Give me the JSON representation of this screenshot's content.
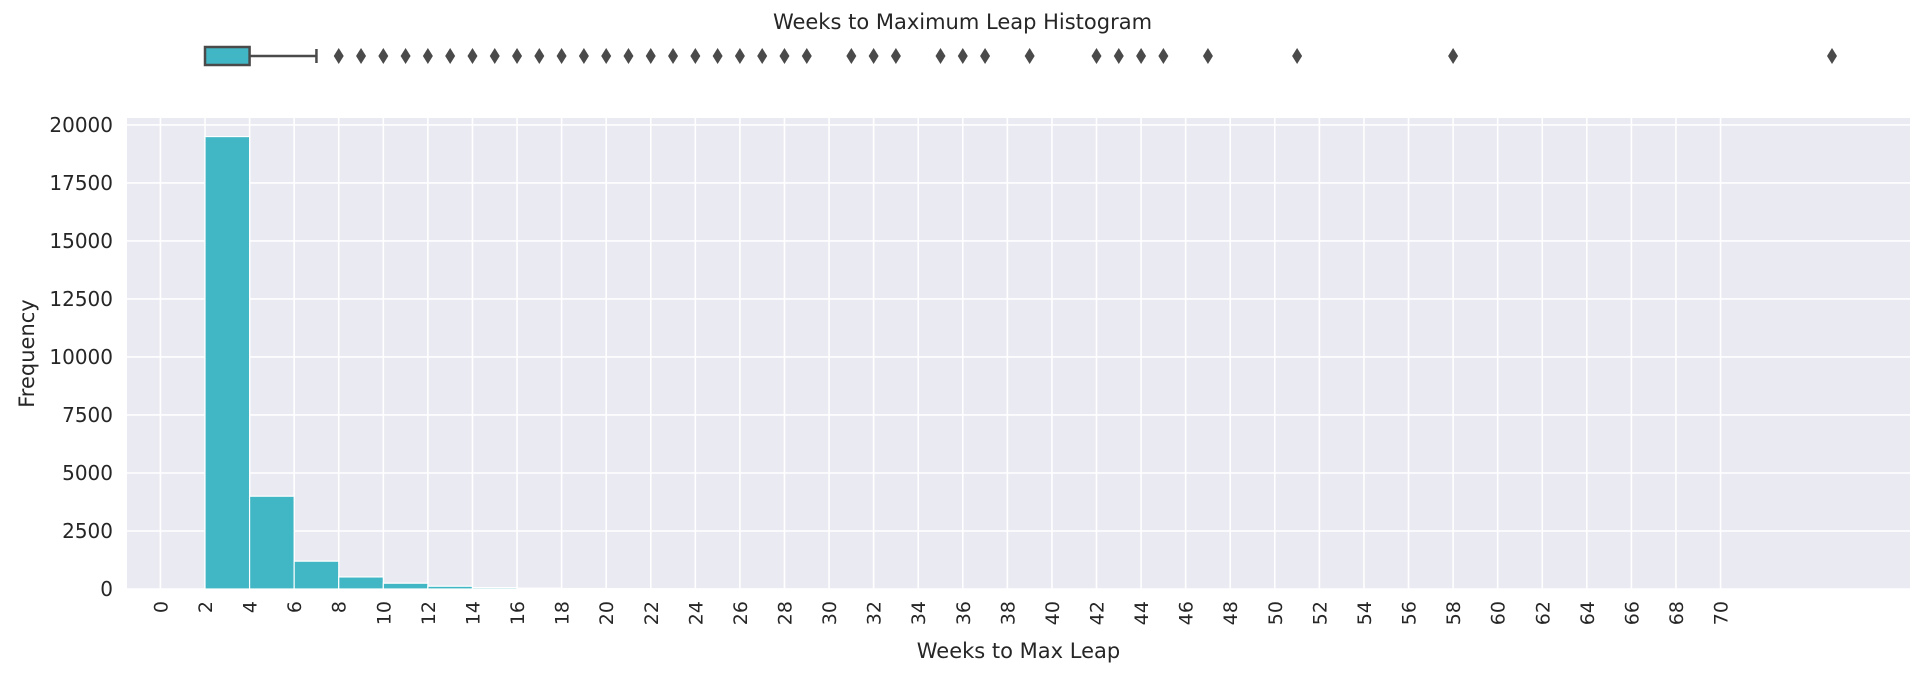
{
  "chart_data": {
    "type": "bar",
    "title": "Weeks to Maximum Leap Histogram",
    "xlabel": "Weeks to Max Leap",
    "ylabel": "Frequency",
    "xlim": [
      -1.5,
      78.5
    ],
    "ylim": [
      0,
      20300
    ],
    "x_ticks": [
      0,
      2,
      4,
      6,
      8,
      10,
      12,
      14,
      16,
      18,
      20,
      22,
      24,
      26,
      28,
      30,
      32,
      34,
      36,
      38,
      40,
      42,
      44,
      46,
      48,
      50,
      52,
      54,
      56,
      58,
      60,
      62,
      64,
      66,
      68,
      70
    ],
    "y_ticks": [
      0,
      2500,
      5000,
      7500,
      10000,
      12500,
      15000,
      17500,
      20000
    ],
    "grid": true,
    "bar_color": "#41b6c4",
    "bins": [
      {
        "start": 2,
        "end": 4,
        "value": 19500
      },
      {
        "start": 4,
        "end": 6,
        "value": 4000
      },
      {
        "start": 6,
        "end": 8,
        "value": 1200
      },
      {
        "start": 8,
        "end": 10,
        "value": 520
      },
      {
        "start": 10,
        "end": 12,
        "value": 250
      },
      {
        "start": 12,
        "end": 14,
        "value": 120
      },
      {
        "start": 14,
        "end": 16,
        "value": 60
      },
      {
        "start": 16,
        "end": 18,
        "value": 35
      },
      {
        "start": 18,
        "end": 20,
        "value": 20
      },
      {
        "start": 20,
        "end": 22,
        "value": 12
      },
      {
        "start": 22,
        "end": 24,
        "value": 8
      },
      {
        "start": 24,
        "end": 26,
        "value": 5
      },
      {
        "start": 26,
        "end": 28,
        "value": 4
      },
      {
        "start": 28,
        "end": 30,
        "value": 3
      }
    ],
    "boxplot": {
      "q1": 2,
      "q3": 4,
      "whisker_high": 7,
      "outliers": [
        8,
        9,
        10,
        11,
        12,
        13,
        14,
        15,
        16,
        17,
        18,
        19,
        20,
        21,
        22,
        23,
        24,
        25,
        26,
        27,
        28,
        29,
        31,
        32,
        33,
        35,
        36,
        37,
        39,
        42,
        43,
        44,
        45,
        47,
        51,
        58,
        75
      ]
    }
  }
}
